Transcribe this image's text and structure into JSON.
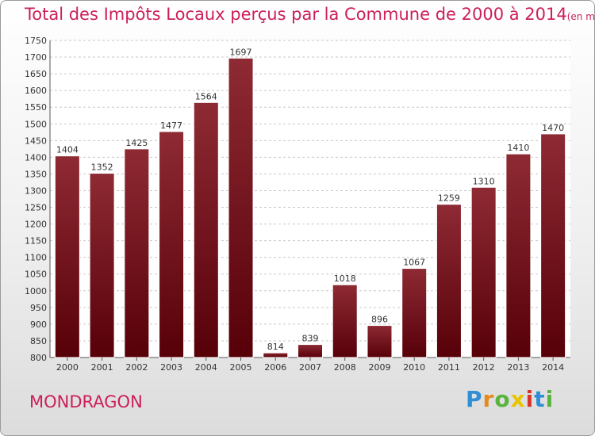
{
  "chart_data": {
    "type": "bar",
    "title": "Total des Impôts Locaux perçus par la Commune de 2000 à 2014",
    "unit_note": "(en milliers d'€)",
    "categories": [
      "2000",
      "2001",
      "2002",
      "2003",
      "2004",
      "2005",
      "2006",
      "2007",
      "2008",
      "2009",
      "2010",
      "2011",
      "2012",
      "2013",
      "2014"
    ],
    "values": [
      1404,
      1352,
      1425,
      1477,
      1564,
      1697,
      814,
      839,
      1018,
      896,
      1067,
      1259,
      1310,
      1410,
      1470
    ],
    "ylim": [
      800,
      1750
    ],
    "yticks": [
      800,
      850,
      900,
      950,
      1000,
      1050,
      1100,
      1150,
      1200,
      1250,
      1300,
      1350,
      1400,
      1450,
      1500,
      1550,
      1600,
      1650,
      1700,
      1750
    ],
    "xlabel": "",
    "ylabel": "",
    "grid": true,
    "bar_color": "#7a1220"
  },
  "commune": "MONDRAGON",
  "logo": {
    "letters": [
      "P",
      "r",
      "o",
      "x",
      "i",
      "t",
      "i"
    ],
    "colors": [
      "#2f8fd6",
      "#e58a1f",
      "#58b43d",
      "#e8c400",
      "#d6342c",
      "#2f8fd6",
      "#58b43d"
    ]
  }
}
